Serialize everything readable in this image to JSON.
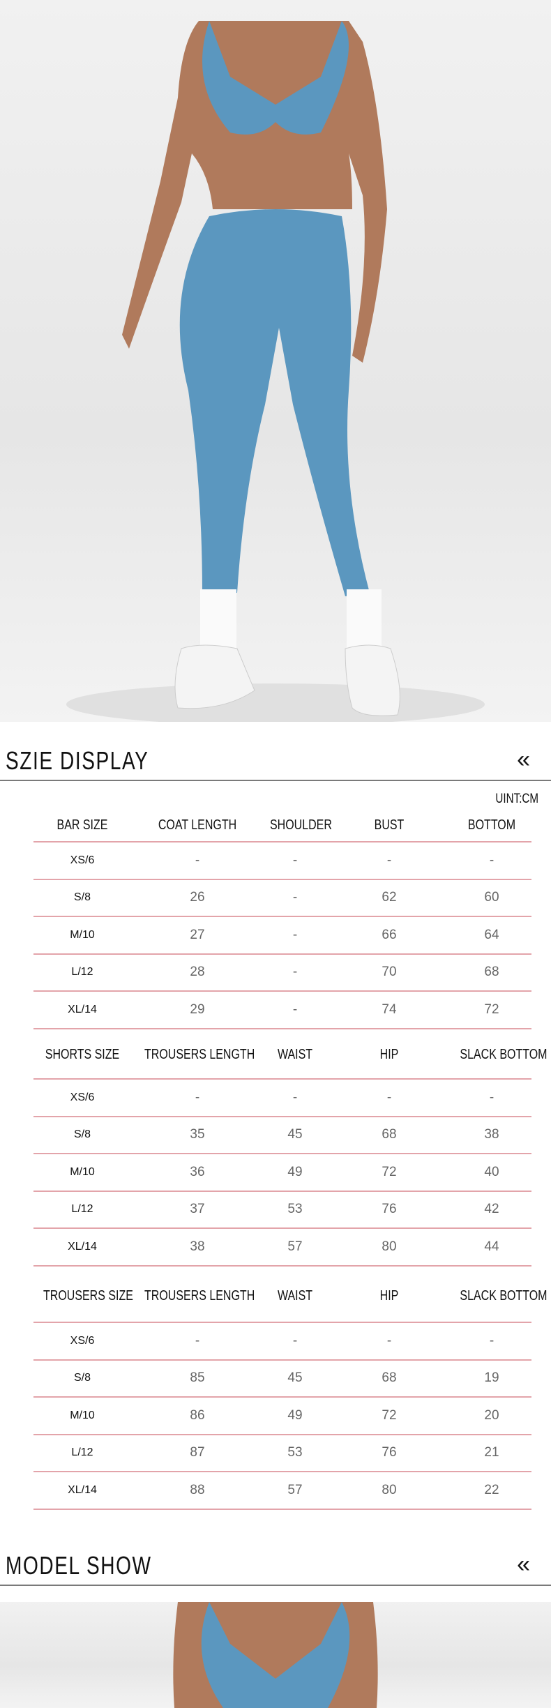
{
  "colors": {
    "product": "#5b97bf",
    "row_line": "#e3a4aa",
    "heading_line": "#7a7a7a"
  },
  "size_display": {
    "title": "SZIE DISPLAY",
    "icon": "double-chevron-left-icon",
    "chevron": "«",
    "unit": "UINT:CM"
  },
  "tables": [
    {
      "headers": [
        "BAR SIZE",
        "COAT LENGTH",
        "SHOULDER",
        "BUST",
        "BOTTOM"
      ],
      "rows": [
        [
          "XS/6",
          "-",
          "-",
          "-",
          "-"
        ],
        [
          "S/8",
          "26",
          "-",
          "62",
          "60"
        ],
        [
          "M/10",
          "27",
          "-",
          "66",
          "64"
        ],
        [
          "L/12",
          "28",
          "-",
          "70",
          "68"
        ],
        [
          "XL/14",
          "29",
          "-",
          "74",
          "72"
        ]
      ]
    },
    {
      "headers": [
        "SHORTS SIZE",
        "TROUSERS LENGTH",
        "WAIST",
        "HIP",
        "SLACK BOTTOM"
      ],
      "rows": [
        [
          "XS/6",
          "-",
          "-",
          "-",
          "-"
        ],
        [
          "S/8",
          "35",
          "45",
          "68",
          "38"
        ],
        [
          "M/10",
          "36",
          "49",
          "72",
          "40"
        ],
        [
          "L/12",
          "37",
          "53",
          "76",
          "42"
        ],
        [
          "XL/14",
          "38",
          "57",
          "80",
          "44"
        ]
      ]
    },
    {
      "headers": [
        "TROUSERS SIZE",
        "TROUSERS LENGTH",
        "WAIST",
        "HIP",
        "SLACK BOTTOM"
      ],
      "rows": [
        [
          "XS/6",
          "-",
          "-",
          "-",
          "-"
        ],
        [
          "S/8",
          "85",
          "45",
          "68",
          "19"
        ],
        [
          "M/10",
          "86",
          "49",
          "72",
          "20"
        ],
        [
          "L/12",
          "87",
          "53",
          "76",
          "21"
        ],
        [
          "XL/14",
          "88",
          "57",
          "80",
          "22"
        ]
      ]
    }
  ],
  "model_show": {
    "title": "MODEL SHOW",
    "icon": "double-chevron-left-icon",
    "chevron": "«"
  }
}
